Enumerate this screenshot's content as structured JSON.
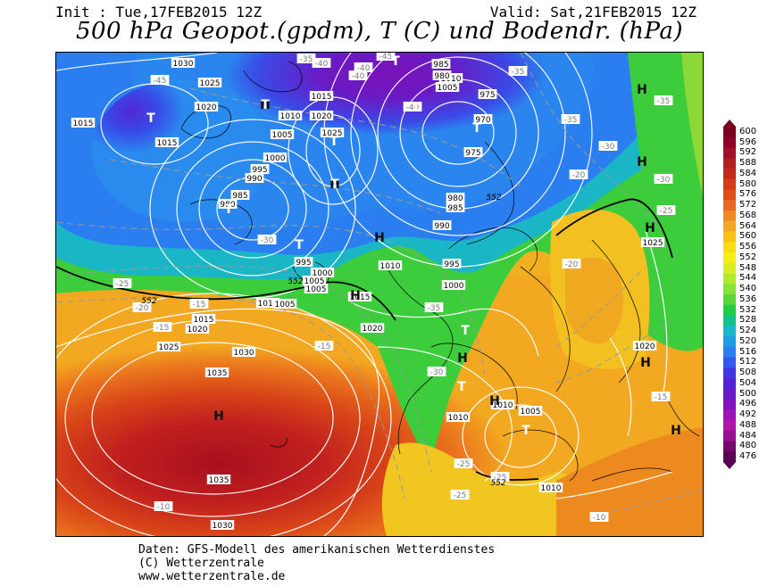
{
  "header": {
    "init": "Init : Tue,17FEB2015 12Z",
    "valid": "Valid: Sat,21FEB2015 12Z",
    "title": "500 hPa Geopot.(gpdm), T (C) und Bodendr. (hPa)"
  },
  "colorbar": {
    "values": [
      "600",
      "596",
      "592",
      "588",
      "584",
      "580",
      "576",
      "572",
      "568",
      "564",
      "560",
      "556",
      "552",
      "548",
      "544",
      "540",
      "536",
      "532",
      "528",
      "524",
      "520",
      "516",
      "512",
      "508",
      "504",
      "500",
      "496",
      "492",
      "488",
      "484",
      "480",
      "476"
    ],
    "colors": [
      "#7a0022",
      "#8e0024",
      "#a0102a",
      "#b01f22",
      "#c22a1e",
      "#d63a16",
      "#e04e1a",
      "#e86a22",
      "#ee8a22",
      "#f2a820",
      "#f7c318",
      "#f9dd12",
      "#f6ee18",
      "#d8ef26",
      "#b1ea2c",
      "#8be236",
      "#5bd63a",
      "#22cc44",
      "#12c48a",
      "#1ab8c8",
      "#1f9de6",
      "#2c7ff0",
      "#3558ee",
      "#4236e4",
      "#5422d8",
      "#6a18c8",
      "#8214c0",
      "#9a14b6",
      "#b216a8",
      "#9a1090",
      "#760a6a",
      "#560652"
    ]
  },
  "map": {
    "pressure_labels": [
      "1030",
      "1025",
      "1020",
      "1015",
      "1015",
      "1010",
      "1005",
      "1000",
      "995",
      "990",
      "985",
      "980",
      "1015",
      "1020",
      "1025",
      "1010",
      "1005",
      "985",
      "980",
      "975",
      "970",
      "975",
      "980",
      "985",
      "990",
      "995",
      "1000",
      "1010",
      "1005",
      "1000",
      "995",
      "1005",
      "1010",
      "1015",
      "1020",
      "1015",
      "1025",
      "1030",
      "1035",
      "1035",
      "1030",
      "1020",
      "1005",
      "1010",
      "1010",
      "1005",
      "1010",
      "1020",
      "1025"
    ],
    "temp_labels": [
      "-45",
      "-40",
      "-45",
      "-40",
      "-35",
      "-40",
      "-35",
      "-35",
      "-30",
      "-25",
      "-20",
      "-15",
      "-15",
      "-10",
      "-15",
      "-20",
      "-25",
      "-30",
      "-35",
      "-30",
      "-25",
      "-25",
      "-15",
      "-10",
      "-20",
      "-25",
      "-30",
      "-35",
      "-40"
    ],
    "geopot_labels": [
      "552",
      "552",
      "552",
      "552"
    ],
    "centers": [
      {
        "type": "H"
      },
      {
        "type": "H"
      },
      {
        "type": "H"
      },
      {
        "type": "H"
      },
      {
        "type": "H"
      },
      {
        "type": "H"
      },
      {
        "type": "H"
      },
      {
        "type": "H"
      },
      {
        "type": "H"
      },
      {
        "type": "H"
      },
      {
        "type": "H"
      },
      {
        "type": "H"
      },
      {
        "type": "T"
      },
      {
        "type": "T"
      },
      {
        "type": "T"
      },
      {
        "type": "T"
      },
      {
        "type": "T"
      },
      {
        "type": "T"
      },
      {
        "type": "T"
      },
      {
        "type": "T"
      },
      {
        "type": "T"
      },
      {
        "type": "T"
      },
      {
        "type": "T"
      },
      {
        "type": "T"
      }
    ]
  },
  "footer": {
    "line1": "Daten: GFS-Modell des amerikanischen Wetterdienstes",
    "line2": "(C) Wetterzentrale",
    "line3": "www.wetterzentrale.de"
  }
}
